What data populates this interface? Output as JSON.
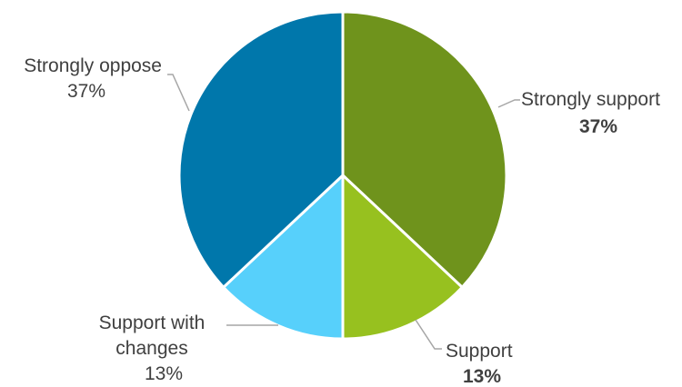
{
  "chart_data": {
    "type": "pie",
    "title": "",
    "slices": [
      {
        "label_lines": [
          "Strongly support"
        ],
        "pct_label": "37%",
        "value": 37,
        "color": "#6f931c"
      },
      {
        "label_lines": [
          "Support"
        ],
        "pct_label": "13%",
        "value": 13,
        "color": "#97c11f"
      },
      {
        "label_lines": [
          "Support with",
          "changes"
        ],
        "pct_label": "13%",
        "value": 13,
        "color": "#57d0fb"
      },
      {
        "label_lines": [
          "Strongly oppose"
        ],
        "pct_label": "37%",
        "value": 37,
        "color": "#0077ab"
      }
    ],
    "legend": "none",
    "start_angle_deg": 0,
    "direction": "clockwise",
    "slice_border_color": "#ffffff",
    "leader_line_color": "#a6a6a6"
  }
}
